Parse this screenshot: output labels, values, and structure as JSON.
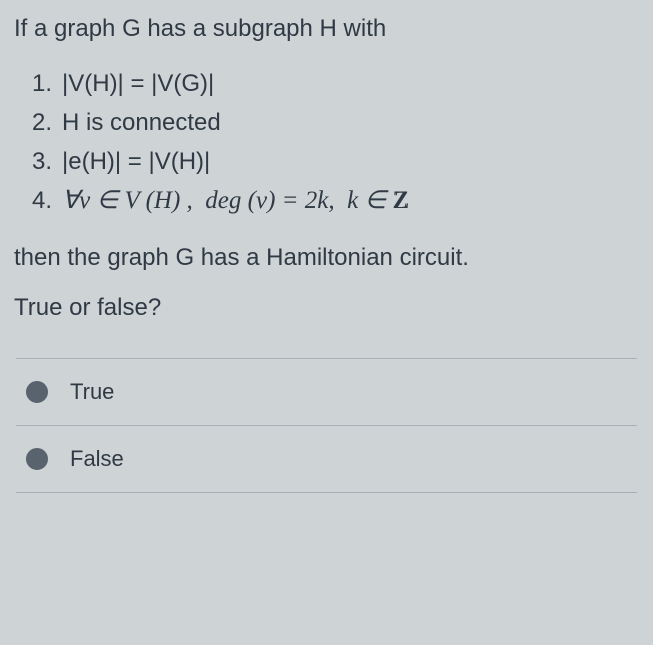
{
  "colors": {
    "background": "#ced3d6",
    "text": "#2f3a44",
    "divider": "#a9b0b5",
    "radio_border": "#6c7680",
    "radio_fill": "#59636d"
  },
  "question": {
    "intro": "If a graph G has a subgraph H with",
    "conditions": [
      {
        "num": "1.",
        "text": "|V(H)| = |V(G)|"
      },
      {
        "num": "2.",
        "text": "H is connected"
      },
      {
        "num": "3.",
        "text": "|e(H)| = |V(H)|"
      },
      {
        "num": "4.",
        "text_html": "∀v ∈ V (H) ,  deg (v) = 2k,  k ∈ ℤ"
      }
    ],
    "conclusion": "then the graph G has a Hamiltonian circuit.",
    "prompt": "True or false?"
  },
  "options": [
    {
      "label": "True",
      "selected": true
    },
    {
      "label": "False",
      "selected": true
    }
  ]
}
